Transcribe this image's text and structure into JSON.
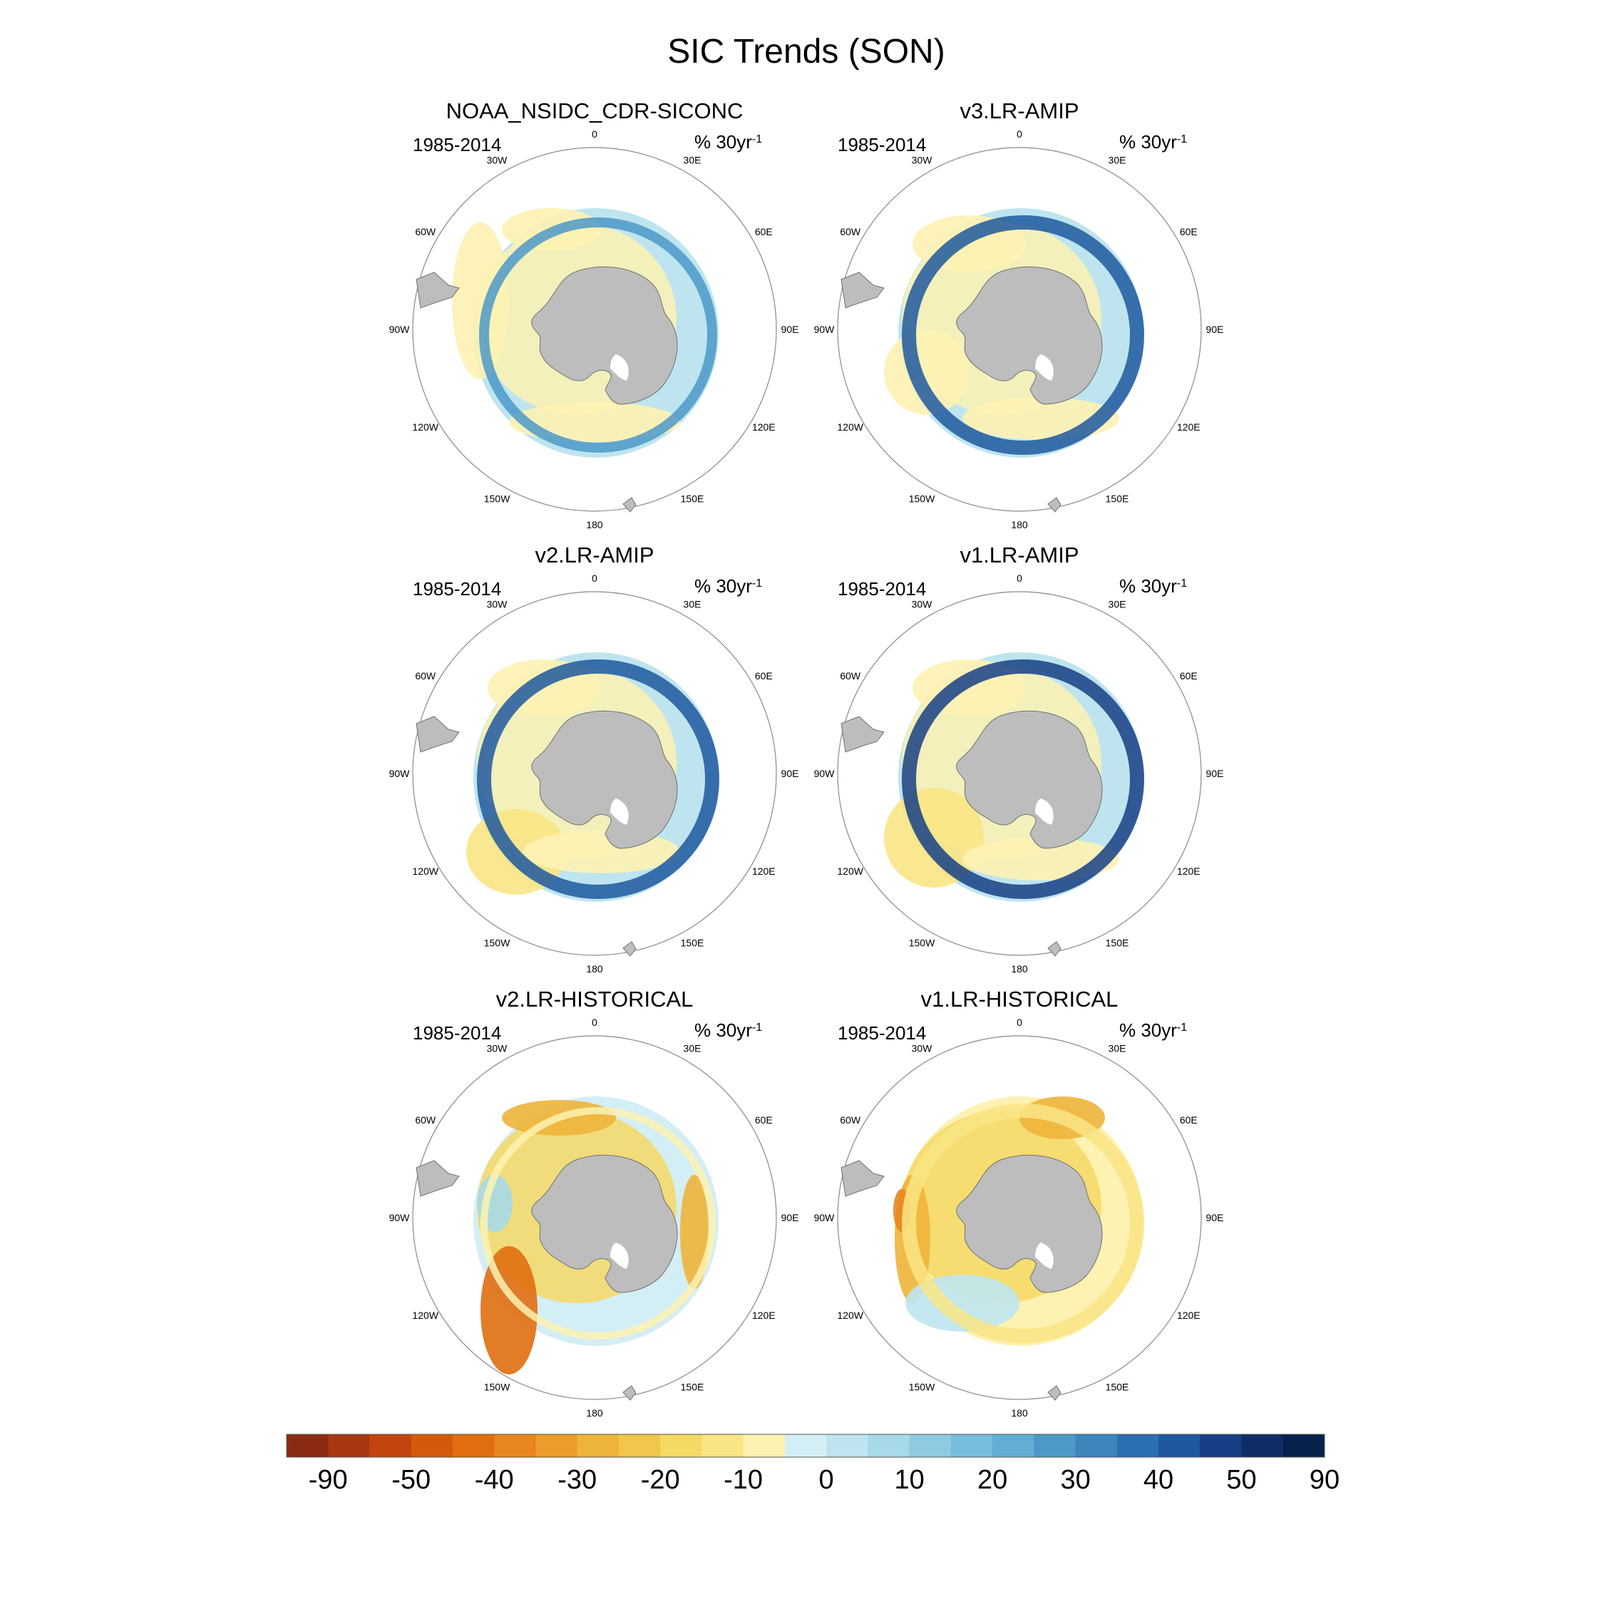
{
  "title": "SIC Trends (SON)",
  "colors": {
    "land": "#bdbdbd",
    "land_edge": "#707070",
    "frame": "#8a8a8a"
  },
  "colorbar": {
    "labels": [
      "-90",
      "-50",
      "-40",
      "-30",
      "-20",
      "-10",
      "0",
      "10",
      "20",
      "30",
      "40",
      "50",
      "90"
    ],
    "colors": [
      "#8b2a13",
      "#a83812",
      "#c24510",
      "#d35a0b",
      "#e06e10",
      "#e8851e",
      "#eb9c2a",
      "#eeb43a",
      "#f2c64b",
      "#f6d865",
      "#f9e585",
      "#fdf2b2",
      "#d4eef5",
      "#bee5ef",
      "#a7d9e8",
      "#8ecbe0",
      "#76bddb",
      "#62add4",
      "#4c99c8",
      "#3c85bd",
      "#2a70b1",
      "#1e589f",
      "#163f85",
      "#0e2d68",
      "#08204c"
    ]
  },
  "lon_labels": [
    "0",
    "30E",
    "60E",
    "90E",
    "120E",
    "150E",
    "180",
    "150W",
    "120W",
    "90W",
    "60W",
    "30W"
  ],
  "panels": [
    {
      "title": "NOAA_NSIDC_CDR-SICONC",
      "period": "1985-2014",
      "units": "% 30yr",
      "units_sup": "-1"
    },
    {
      "title": "v3.LR-AMIP",
      "period": "1985-2014",
      "units": "% 30yr",
      "units_sup": "-1"
    },
    {
      "title": "v2.LR-AMIP",
      "period": "1985-2014",
      "units": "% 30yr",
      "units_sup": "-1"
    },
    {
      "title": "v1.LR-AMIP",
      "period": "1985-2014",
      "units": "% 30yr",
      "units_sup": "-1"
    },
    {
      "title": "v2.LR-HISTORICAL",
      "period": "1985-2014",
      "units": "% 30yr",
      "units_sup": "-1"
    },
    {
      "title": "v1.LR-HISTORICAL",
      "period": "1985-2014",
      "units": "% 30yr",
      "units_sup": "-1"
    }
  ]
}
